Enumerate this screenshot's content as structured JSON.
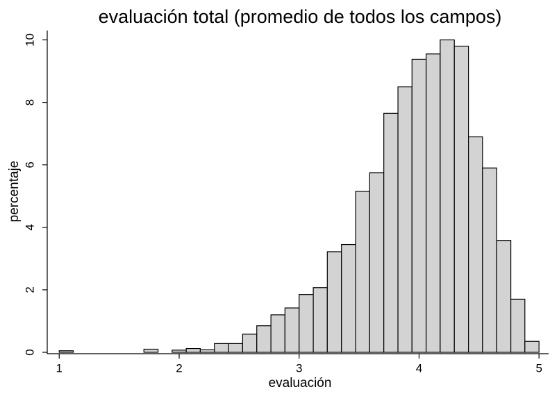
{
  "chart_data": {
    "type": "histogram",
    "title": "evaluación total (promedio de todos los campos)",
    "x_label": "evaluación",
    "y_label": "percentaje",
    "bins": [
      1,
      1.118,
      1.235,
      1.353,
      1.471,
      1.588,
      1.706,
      1.824,
      1.941,
      2.059,
      2.176,
      2.294,
      2.412,
      2.529,
      2.647,
      2.765,
      2.882,
      3,
      3.118,
      3.235,
      3.353,
      3.471,
      3.588,
      3.706,
      3.824,
      3.941,
      4.059,
      4.176,
      4.294,
      4.412,
      4.529,
      4.647,
      4.765,
      4.882,
      5
    ],
    "values": [
      0.05,
      0,
      0,
      0,
      0,
      0,
      0.1,
      0,
      0.07,
      0.12,
      0.08,
      0.28,
      0.28,
      0.58,
      0.85,
      1.2,
      1.42,
      1.85,
      2.07,
      3.22,
      3.45,
      5.15,
      5.75,
      7.65,
      8.5,
      9.38,
      9.55,
      10,
      9.8,
      6.9,
      5.9,
      3.58,
      1.7,
      0.35
    ],
    "color": "#d3d3d3",
    "xlim": [
      0.9,
      5.08
    ],
    "xticks": [
      1,
      2,
      3,
      4,
      5
    ],
    "ylim": [
      0,
      10.3
    ],
    "yticks": [
      0,
      2,
      4,
      6,
      8,
      10
    ]
  }
}
